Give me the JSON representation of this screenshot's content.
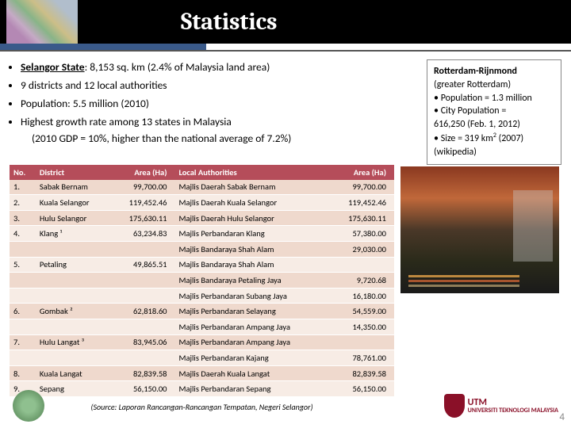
{
  "header": {
    "title": "Statistics"
  },
  "bullets": {
    "b1a": "Selangor State",
    "b1b": ": 8,153 sq. km (2.4% of Malaysia land area)",
    "b2": "9 districts and 12 local authorities",
    "b3": "Population: 5.5 million (2010)",
    "b4": "Highest growth rate among 13 states in Malaysia",
    "b4s": "(2010 GDP = 10%, higher than the national average of 7.2%)"
  },
  "sidebox": {
    "title": "Rotterdam-Rijnmond",
    "l1": "(greater Rotterdam)",
    "l2": "• Population = 1.3 million",
    "l3a": "• City Population =",
    "l3b": "   616,250  (Feb. 1, 2012)",
    "l4a": "• Size = 319 km",
    "l4sup": "2",
    "l4b": " (2007)",
    "l5": "(wikipedia)"
  },
  "table": {
    "headers": [
      "No.",
      "District",
      "Area (Ha)",
      "Local Authorities",
      "Area (Ha)"
    ],
    "rows": [
      [
        "1.",
        "Sabak Bernam",
        "99,700.00",
        "Majlis Daerah Sabak Bernam",
        "99,700.00"
      ],
      [
        "2.",
        "Kuala Selangor",
        "119,452.46",
        "Majlis Daerah Kuala Selangor",
        "119,452.46"
      ],
      [
        "3.",
        "Hulu Selangor",
        "175,630.11",
        "Majlis Daerah Hulu Selangor",
        "175,630.11"
      ],
      [
        "4.",
        "Klang ¹",
        "63,234.83",
        "Majlis Perbandaran Klang",
        "57,380.00"
      ],
      [
        "",
        "",
        "",
        "Majlis Bandaraya Shah Alam",
        "29,030.00"
      ],
      [
        "5.",
        "Petaling",
        "49,865.51",
        "Majlis Bandaraya Shah Alam",
        ""
      ],
      [
        "",
        "",
        "",
        "Majlis Bandaraya Petaling Jaya",
        "9,720.68"
      ],
      [
        "",
        "",
        "",
        "Majlis Perbandaran Subang Jaya",
        "16,180.00"
      ],
      [
        "6.",
        "Gombak ²",
        "62,818.60",
        "Majlis Perbandaran Selayang",
        "54,559.00"
      ],
      [
        "",
        "",
        "",
        "Majlis Perbandaran Ampang Jaya",
        "14,350.00"
      ],
      [
        "7.",
        "Hulu Langat ³",
        "83,945.06",
        "Majlis Perbandaran Ampang Jaya",
        ""
      ],
      [
        "",
        "",
        "",
        "Majlis Perbandaran Kajang",
        "78,761.00"
      ],
      [
        "8.",
        "Kuala Langat",
        "82,839.58",
        "Majlis Daerah Kuala Langat",
        "82,839.58"
      ],
      [
        "9.",
        "Sepang",
        "56,150.00",
        "Majlis Perbandaran Sepang",
        "56,150.00"
      ]
    ]
  },
  "source": "(Source: Laporan Rancangan-Rancangan Tempatan, Negeri Selangor)",
  "logo_r": {
    "t1": "UTM",
    "t2": "UNIVERSITI TEKNOLOGI MALAYSIA"
  },
  "pagenum": "4"
}
